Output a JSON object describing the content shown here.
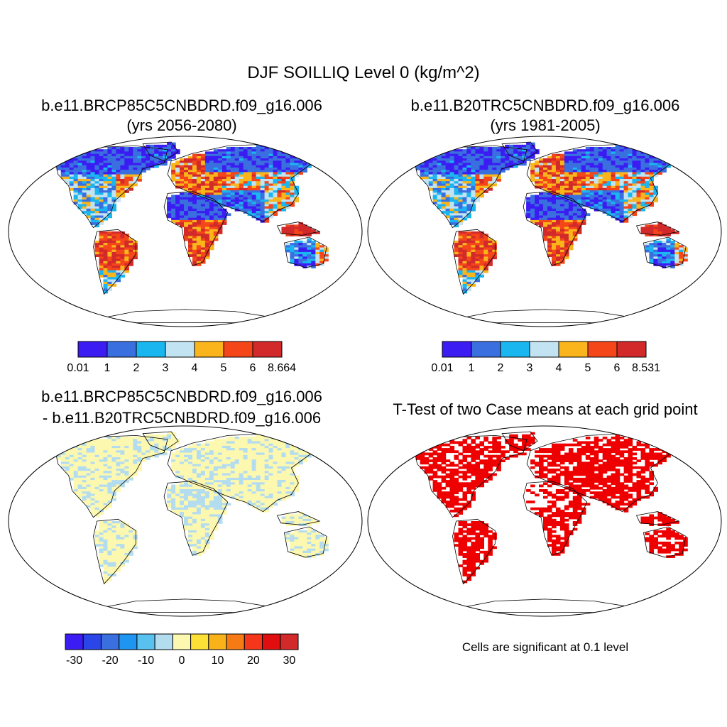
{
  "figure": {
    "title": "DJF SOILLIQ Level 0 (kg/m^2)"
  },
  "panels": [
    {
      "id": "case",
      "title_line1": "b.e11.BRCP85C5CNBDRD.f09_g16.006",
      "title_line2": "(yrs 2056-2080)",
      "colorbar": {
        "colors": [
          "#3b1cf2",
          "#3a6fe0",
          "#1ab6f0",
          "#c2e3f2",
          "#f9b51b",
          "#f5461a",
          "#d22a2a"
        ],
        "labels": [
          "0.01",
          "1",
          "2",
          "3",
          "4",
          "5",
          "6",
          "8.664"
        ]
      }
    },
    {
      "id": "control",
      "title_line1": "b.e11.B20TRC5CNBDRD.f09_g16.006",
      "title_line2": "(yrs 1981-2005)",
      "colorbar": {
        "colors": [
          "#3b1cf2",
          "#3a6fe0",
          "#1ab6f0",
          "#c2e3f2",
          "#f9b51b",
          "#f5461a",
          "#d22a2a"
        ],
        "labels": [
          "0.01",
          "1",
          "2",
          "3",
          "4",
          "5",
          "6",
          "8.531"
        ]
      }
    },
    {
      "id": "difference",
      "title_line1": "b.e11.BRCP85C5CNBDRD.f09_g16.006",
      "title_line2": "- b.e11.B20TRC5CNBDRD.f09_g16.006",
      "colorbar": {
        "colors": [
          "#3b1cf2",
          "#2b46e8",
          "#3a6fe0",
          "#1e95f0",
          "#58c1f0",
          "#b4dcef",
          "#fdf8b0",
          "#fde036",
          "#f9b21a",
          "#f77b15",
          "#f5361a",
          "#e00e0e",
          "#d22a2a"
        ],
        "labels": [
          "-30",
          "-20",
          "-10",
          "0",
          "10",
          "20",
          "30"
        ]
      }
    },
    {
      "id": "ttest",
      "title_line1": "T-Test of two Case means at each grid point",
      "note": "Cells are significant at 0.1 level"
    }
  ],
  "colors": {
    "significant": "#ee0000",
    "dry": "#3b1cf2",
    "wet": "#d22a2a",
    "diff_positive": "#fdf8b0",
    "diff_negative": "#b4dcef"
  }
}
